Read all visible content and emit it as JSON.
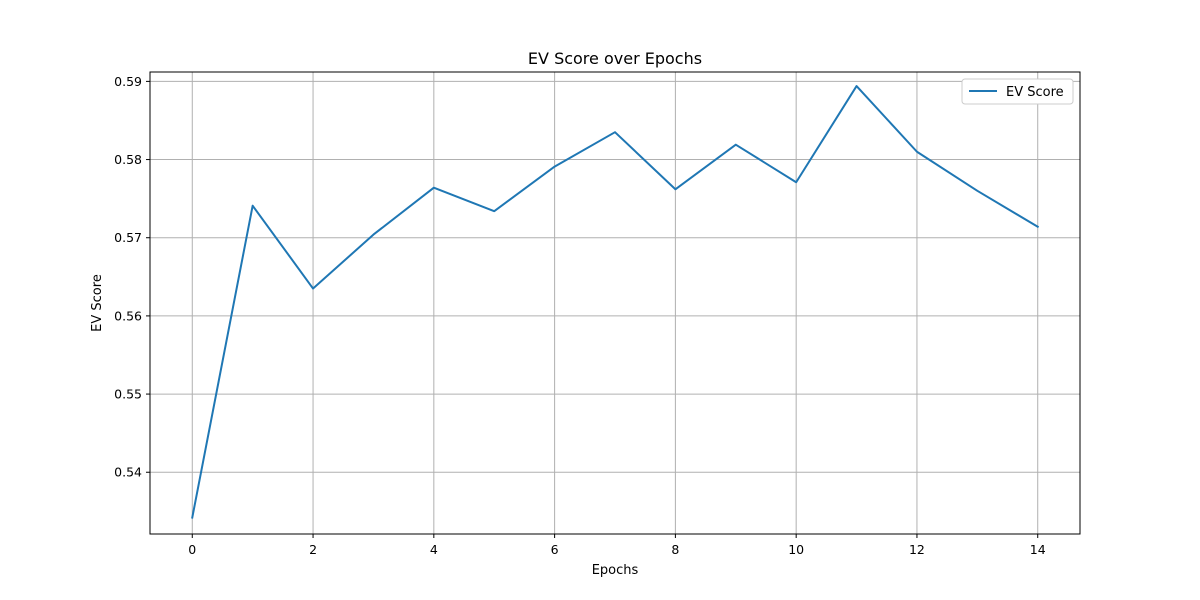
{
  "chart_data": {
    "type": "line",
    "title": "EV Score over Epochs",
    "xlabel": "Epochs",
    "ylabel": "EV Score",
    "x": [
      0,
      1,
      2,
      3,
      4,
      5,
      6,
      7,
      8,
      9,
      10,
      11,
      12,
      13,
      14
    ],
    "series": [
      {
        "name": "EV Score",
        "color": "#1f77b4",
        "values": [
          0.5342,
          0.5741,
          0.5635,
          0.5704,
          0.5764,
          0.5734,
          0.5791,
          0.5835,
          0.5762,
          0.5819,
          0.5771,
          0.5894,
          0.581,
          0.576,
          0.5714
        ]
      }
    ],
    "xlim": [
      -0.7,
      14.7
    ],
    "ylim": [
      0.5321,
      0.5912
    ],
    "xticks": [
      0,
      2,
      4,
      6,
      8,
      10,
      12,
      14
    ],
    "xtick_labels": [
      "0",
      "2",
      "4",
      "6",
      "8",
      "10",
      "12",
      "14"
    ],
    "yticks": [
      0.54,
      0.55,
      0.56,
      0.57,
      0.58,
      0.59
    ],
    "ytick_labels": [
      "0.54",
      "0.55",
      "0.56",
      "0.57",
      "0.58",
      "0.59"
    ],
    "grid": true,
    "legend": "top-right"
  }
}
